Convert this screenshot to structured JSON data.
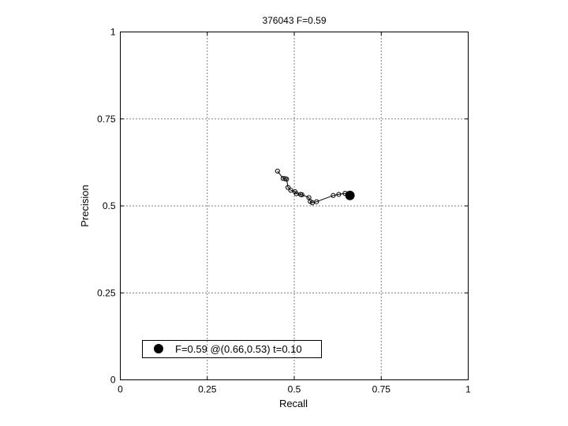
{
  "chart_data": {
    "type": "line",
    "title": "376043 F=0.59",
    "xlabel": "Recall",
    "ylabel": "Precision",
    "xlim": [
      0,
      1
    ],
    "ylim": [
      0,
      1
    ],
    "xticks": [
      "0",
      "0.25",
      "0.5",
      "0.75",
      "1"
    ],
    "yticks": [
      "0",
      "0.25",
      "0.5",
      "0.75",
      "1"
    ],
    "grid": true,
    "series": [
      {
        "marker": "open-circle",
        "x": [
          0.452,
          0.468,
          0.474,
          0.478,
          0.482,
          0.49,
          0.502,
          0.506,
          0.518,
          0.522,
          0.542,
          0.546,
          0.552,
          0.564,
          0.612,
          0.628,
          0.646,
          0.656
        ],
        "y": [
          0.6,
          0.579,
          0.578,
          0.577,
          0.553,
          0.545,
          0.541,
          0.535,
          0.533,
          0.532,
          0.524,
          0.513,
          0.509,
          0.512,
          0.53,
          0.533,
          0.536,
          0.535
        ]
      }
    ],
    "best_point": {
      "x": 0.66,
      "y": 0.53
    },
    "legend": {
      "placement": "bottom-left",
      "entries": [
        "F=0.59 @(0.66,0.53) t=0.10"
      ]
    }
  }
}
